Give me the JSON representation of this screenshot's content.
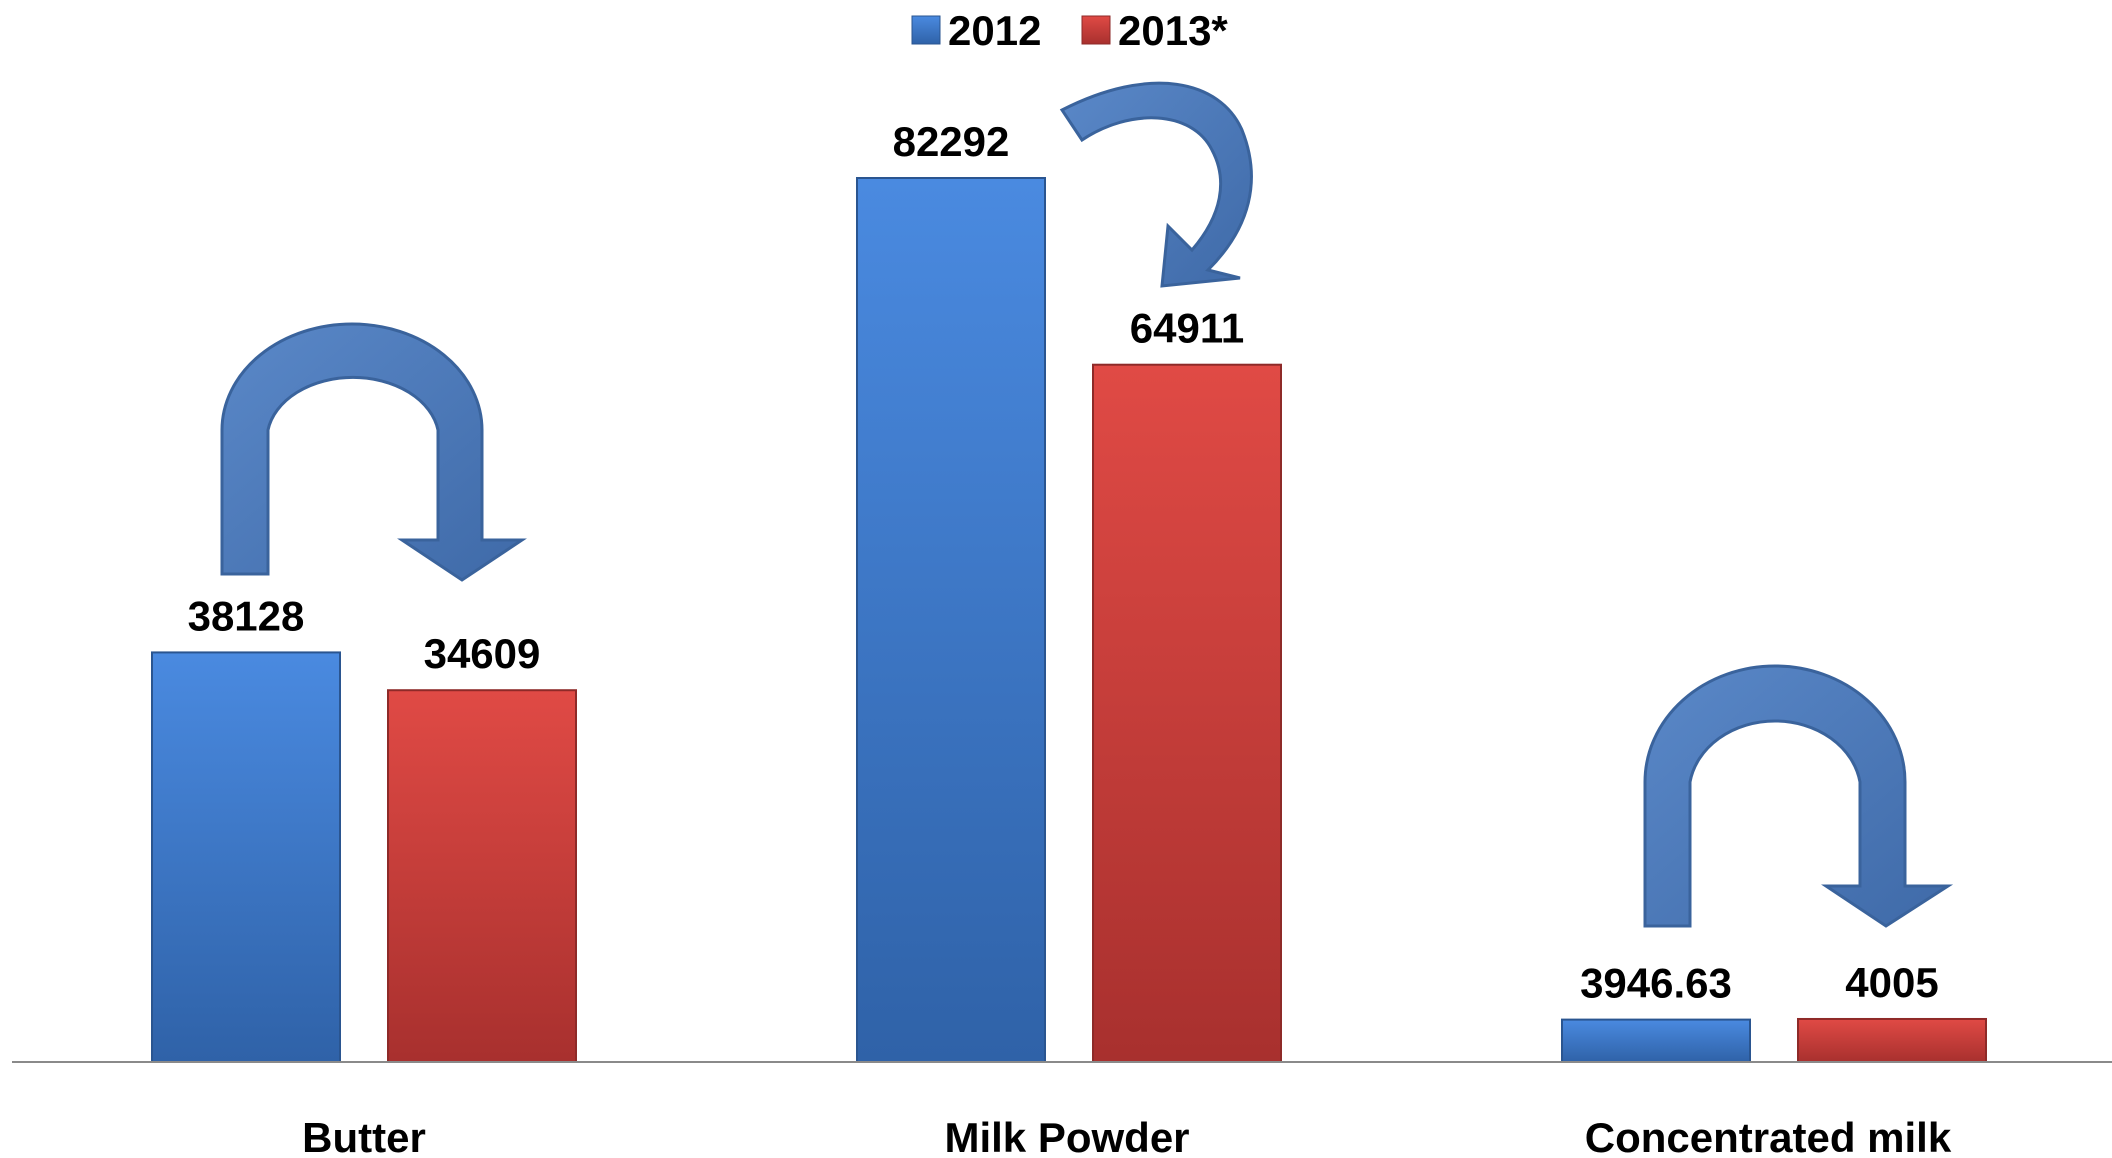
{
  "chart_data": {
    "type": "bar",
    "categories": [
      "Butter",
      "Milk Powder",
      "Concentrated milk"
    ],
    "series": [
      {
        "name": "2012",
        "color": "#3d7dd6",
        "values": [
          38128,
          82292,
          3946.63
        ]
      },
      {
        "name": "2013*",
        "color": "#d43d3a",
        "values": [
          34609,
          64911,
          4005
        ]
      }
    ],
    "value_labels": [
      [
        "38128",
        "82292",
        "3946.63"
      ],
      [
        "34609",
        "64911",
        "4005"
      ]
    ],
    "ylim": [
      0,
      82292
    ],
    "legend_position": "top-center",
    "grid": false,
    "arrow_color": "#4a78b8"
  }
}
